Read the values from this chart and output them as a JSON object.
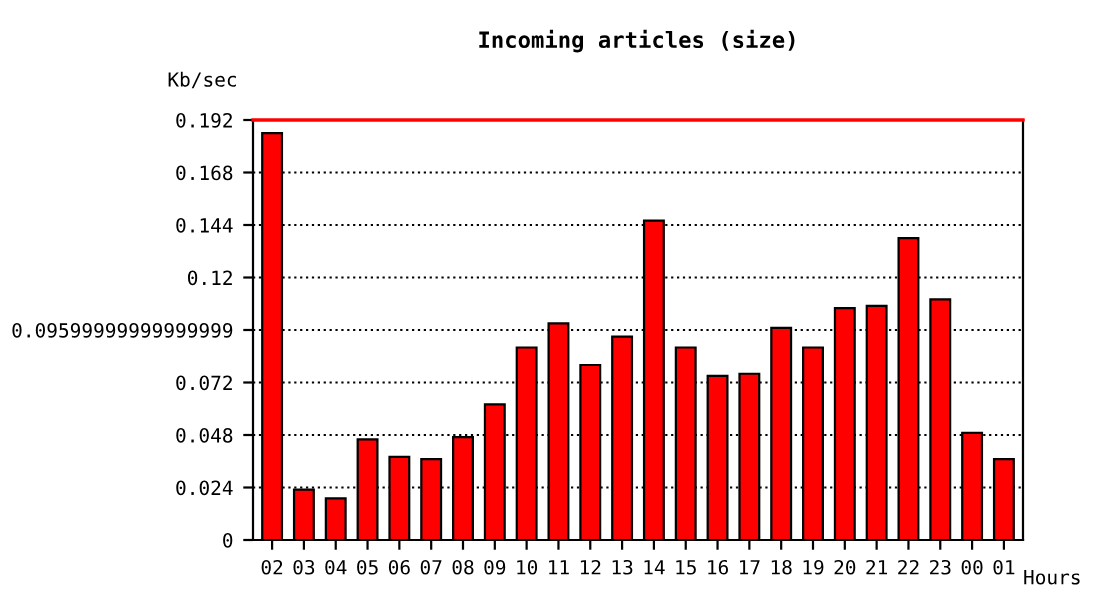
{
  "chart_data": {
    "type": "bar",
    "title": "Incoming articles (size)",
    "ylabel": "Kb/sec",
    "xlabel": "Hours",
    "categories": [
      "02",
      "03",
      "04",
      "05",
      "06",
      "07",
      "08",
      "09",
      "10",
      "11",
      "12",
      "13",
      "14",
      "15",
      "16",
      "17",
      "18",
      "19",
      "20",
      "21",
      "22",
      "23",
      "00",
      "01"
    ],
    "values": [
      0.186,
      0.023,
      0.019,
      0.046,
      0.038,
      0.037,
      0.047,
      0.062,
      0.088,
      0.099,
      0.08,
      0.093,
      0.146,
      0.088,
      0.075,
      0.076,
      0.097,
      0.088,
      0.106,
      0.107,
      0.138,
      0.11,
      0.049,
      0.037
    ],
    "color": "#ff0000",
    "ylim": [
      0,
      0.192
    ],
    "yticks": [
      0,
      0.024,
      0.048,
      0.072,
      {
        "value": 0.096,
        "label": "0.09599999999999999"
      },
      0.12,
      0.144,
      0.168,
      0.192
    ],
    "ref_lines": [
      {
        "axis": "y",
        "value": 0.192,
        "color": "#ff0000"
      }
    ],
    "grid": "y",
    "line_style": "dotted"
  }
}
